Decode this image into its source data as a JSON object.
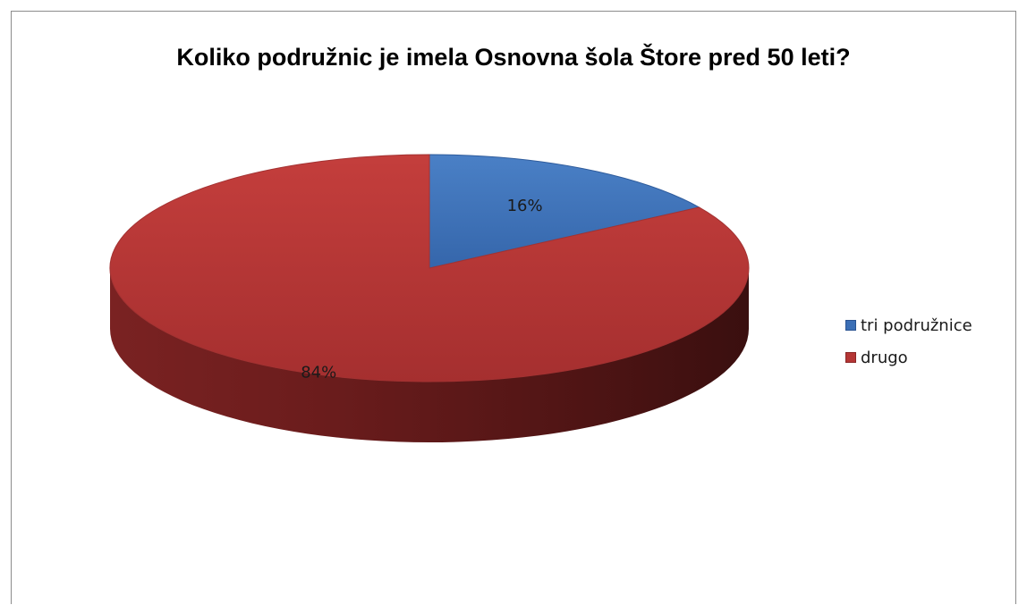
{
  "chart_data": {
    "type": "pie",
    "title": "Koliko podružnic je imela Osnovna šola Štore pred 50 leti?",
    "slices": [
      {
        "label": "tri podružnice",
        "value": 16,
        "display": "16%",
        "color": "#3b6fb6"
      },
      {
        "label": "drugo",
        "value": 84,
        "display": "84%",
        "color": "#b53635"
      }
    ],
    "legend_position": "right",
    "three_d": true
  }
}
